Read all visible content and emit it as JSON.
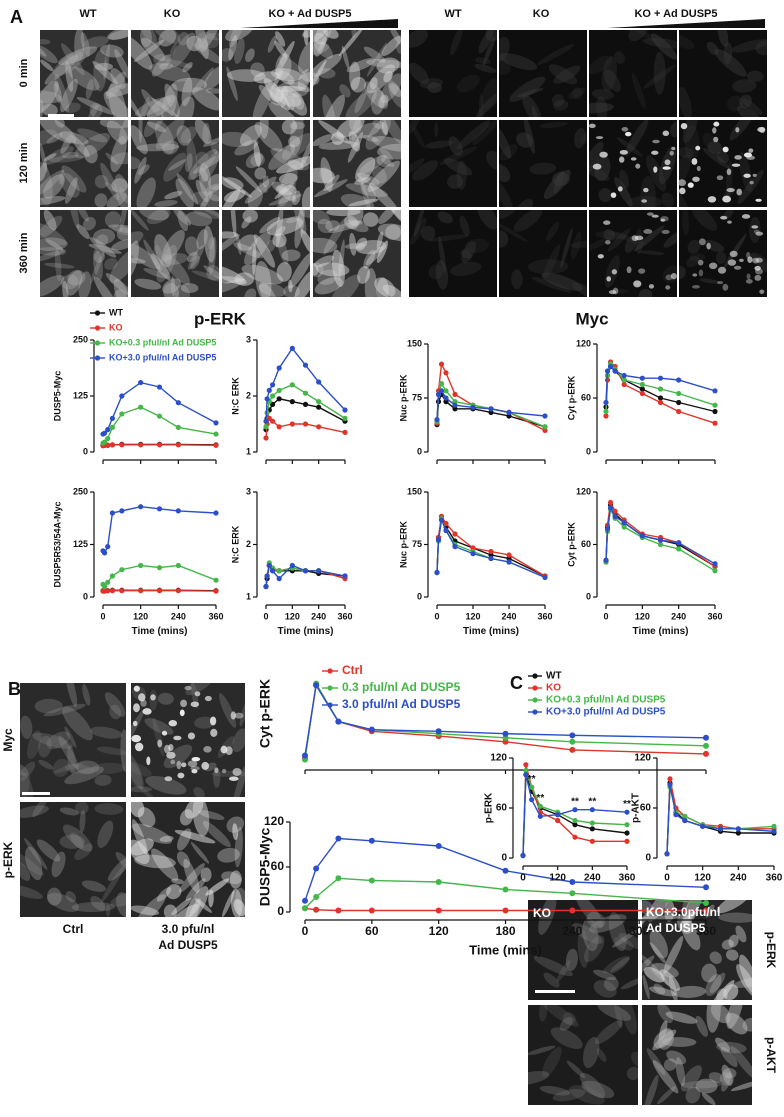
{
  "panel_labels": [
    "A",
    "B",
    "C"
  ],
  "panel_a": {
    "columns_left": [
      "WT",
      "KO",
      "KO + Ad DUSP5"
    ],
    "columns_right": [
      "WT",
      "KO",
      "KO + Ad DUSP5"
    ],
    "rows": [
      "0 min",
      "120 min",
      "360 min"
    ],
    "headings": [
      "p-ERK",
      "Myc"
    ]
  },
  "panel_b": {
    "rows": [
      "Myc",
      "p-ERK"
    ],
    "columns": [
      [
        "Ctrl"
      ],
      [
        "3.0 pfu/nl",
        "Ad DUSP5"
      ]
    ]
  },
  "panel_c": {
    "columns": [
      [
        "KO"
      ],
      [
        "KO+3.0pfu/nl",
        "Ad DUSP5"
      ]
    ],
    "rows": [
      "p-ERK",
      "p-AKT"
    ]
  },
  "chart_data": [
    {
      "type": "line",
      "ylabel": "DUSP5-Myc",
      "legend": "top-left",
      "x": [
        0,
        5,
        15,
        30,
        60,
        120,
        180,
        240,
        360
      ],
      "xlim": [
        0,
        360
      ],
      "xticks": [
        0,
        120,
        240,
        360
      ],
      "xtick_labels": false,
      "ylim": [
        0,
        250
      ],
      "yticks": [
        0,
        125,
        250
      ],
      "series": [
        {
          "name": "WT",
          "color": "#111111",
          "values": [
            15,
            15,
            15,
            16,
            17,
            17,
            17,
            17,
            16
          ]
        },
        {
          "name": "KO",
          "color": "#e0332a",
          "values": [
            14,
            15,
            15,
            16,
            16,
            16,
            16,
            16,
            15
          ]
        },
        {
          "name": "KO+0.3 pful/nl Ad DUSP5",
          "color": "#45b649",
          "values": [
            20,
            22,
            30,
            55,
            85,
            100,
            80,
            55,
            40
          ]
        },
        {
          "name": "KO+3.0 pful/nl Ad DUSP5",
          "color": "#2c4fc9",
          "values": [
            40,
            42,
            50,
            75,
            125,
            155,
            145,
            110,
            65
          ]
        }
      ]
    },
    {
      "type": "line",
      "ylabel": "N:C ERK",
      "x": [
        0,
        5,
        15,
        30,
        60,
        120,
        180,
        240,
        360
      ],
      "xlim": [
        0,
        360
      ],
      "xticks": [
        0,
        120,
        240,
        360
      ],
      "xtick_labels": false,
      "ylim": [
        1,
        3
      ],
      "yticks": [
        1,
        2,
        3
      ],
      "series": [
        {
          "color": "#111111",
          "values": [
            1.4,
            1.6,
            1.75,
            1.85,
            1.95,
            1.9,
            1.85,
            1.8,
            1.55
          ]
        },
        {
          "color": "#e0332a",
          "values": [
            1.25,
            1.5,
            1.6,
            1.55,
            1.45,
            1.5,
            1.5,
            1.45,
            1.35
          ]
        },
        {
          "color": "#45b649",
          "values": [
            1.45,
            1.7,
            1.9,
            2.0,
            2.1,
            2.2,
            2.05,
            1.9,
            1.6
          ]
        },
        {
          "color": "#2c4fc9",
          "values": [
            1.55,
            1.95,
            2.1,
            2.2,
            2.5,
            2.85,
            2.55,
            2.25,
            1.75
          ]
        }
      ]
    },
    {
      "type": "line",
      "ylabel": "Nuc p-ERK",
      "x": [
        0,
        5,
        15,
        30,
        60,
        120,
        180,
        240,
        360
      ],
      "xlim": [
        0,
        360
      ],
      "xticks": [
        0,
        120,
        240,
        360
      ],
      "xtick_labels": false,
      "ylim": [
        0,
        150
      ],
      "yticks": [
        0,
        75,
        150
      ],
      "series": [
        {
          "color": "#111111",
          "values": [
            38,
            70,
            80,
            70,
            60,
            60,
            55,
            50,
            35
          ]
        },
        {
          "color": "#e0332a",
          "values": [
            40,
            85,
            122,
            110,
            80,
            65,
            60,
            55,
            30
          ]
        },
        {
          "color": "#45b649",
          "values": [
            42,
            80,
            95,
            85,
            70,
            65,
            60,
            55,
            35
          ]
        },
        {
          "color": "#2c4fc9",
          "values": [
            45,
            80,
            85,
            75,
            65,
            62,
            60,
            55,
            50
          ]
        }
      ]
    },
    {
      "type": "line",
      "ylabel": "Cyt p-ERK",
      "x": [
        0,
        5,
        15,
        30,
        60,
        120,
        180,
        240,
        360
      ],
      "xlim": [
        0,
        360
      ],
      "xticks": [
        0,
        120,
        240,
        360
      ],
      "xtick_labels": false,
      "ylim": [
        0,
        120
      ],
      "yticks": [
        0,
        60,
        120
      ],
      "series": [
        {
          "color": "#111111",
          "values": [
            50,
            85,
            95,
            90,
            80,
            70,
            60,
            55,
            45
          ]
        },
        {
          "color": "#e0332a",
          "values": [
            40,
            80,
            100,
            95,
            75,
            65,
            55,
            45,
            32
          ]
        },
        {
          "color": "#45b649",
          "values": [
            45,
            85,
            98,
            92,
            80,
            75,
            70,
            65,
            52
          ]
        },
        {
          "color": "#2c4fc9",
          "values": [
            55,
            90,
            95,
            90,
            85,
            82,
            82,
            80,
            68
          ]
        }
      ]
    },
    {
      "type": "line",
      "ylabel": "DUSP5R53/54A-Myc",
      "xlabel": "Time (mins)",
      "x": [
        0,
        5,
        15,
        30,
        60,
        120,
        180,
        240,
        360
      ],
      "xlim": [
        0,
        360
      ],
      "xticks": [
        0,
        120,
        240,
        360
      ],
      "ylim": [
        0,
        250
      ],
      "yticks": [
        0,
        125,
        250
      ],
      "series": [
        {
          "color": "#111111",
          "values": [
            15,
            15,
            15,
            16,
            16,
            16,
            16,
            16,
            15
          ]
        },
        {
          "color": "#e0332a",
          "values": [
            14,
            14,
            15,
            15,
            15,
            15,
            15,
            15,
            14
          ]
        },
        {
          "color": "#45b649",
          "values": [
            30,
            25,
            35,
            50,
            65,
            75,
            70,
            75,
            40
          ]
        },
        {
          "color": "#2c4fc9",
          "values": [
            110,
            105,
            120,
            200,
            205,
            215,
            210,
            205,
            200
          ]
        }
      ]
    },
    {
      "type": "line",
      "ylabel": "N:C ERK",
      "xlabel": "Time (mins)",
      "x": [
        0,
        5,
        15,
        30,
        60,
        120,
        180,
        240,
        360
      ],
      "xlim": [
        0,
        360
      ],
      "xticks": [
        0,
        120,
        240,
        360
      ],
      "ylim": [
        1,
        3
      ],
      "yticks": [
        1,
        2,
        3
      ],
      "series": [
        {
          "color": "#111111",
          "values": [
            1.2,
            1.35,
            1.6,
            1.55,
            1.5,
            1.5,
            1.5,
            1.45,
            1.4
          ]
        },
        {
          "color": "#e0332a",
          "values": [
            1.2,
            1.4,
            1.6,
            1.5,
            1.5,
            1.55,
            1.5,
            1.5,
            1.35
          ]
        },
        {
          "color": "#45b649",
          "values": [
            1.2,
            1.4,
            1.65,
            1.55,
            1.5,
            1.55,
            1.5,
            1.5,
            1.4
          ]
        },
        {
          "color": "#2c4fc9",
          "values": [
            1.2,
            1.4,
            1.6,
            1.5,
            1.35,
            1.6,
            1.5,
            1.5,
            1.4
          ]
        }
      ]
    },
    {
      "type": "line",
      "ylabel": "Nuc p-ERK",
      "xlabel": "Time (mins)",
      "x": [
        0,
        5,
        15,
        30,
        60,
        120,
        180,
        240,
        360
      ],
      "xlim": [
        0,
        360
      ],
      "xticks": [
        0,
        120,
        240,
        360
      ],
      "ylim": [
        0,
        150
      ],
      "yticks": [
        0,
        75,
        150
      ],
      "series": [
        {
          "color": "#111111",
          "values": [
            35,
            85,
            115,
            100,
            80,
            70,
            60,
            55,
            30
          ]
        },
        {
          "color": "#e0332a",
          "values": [
            35,
            85,
            115,
            105,
            90,
            70,
            65,
            60,
            30
          ]
        },
        {
          "color": "#45b649",
          "values": [
            35,
            80,
            112,
            95,
            75,
            65,
            55,
            50,
            28
          ]
        },
        {
          "color": "#2c4fc9",
          "values": [
            35,
            82,
            110,
            95,
            72,
            62,
            55,
            50,
            28
          ]
        }
      ]
    },
    {
      "type": "line",
      "ylabel": "Cyt p-ERK",
      "xlabel": "Time (mins)",
      "x": [
        0,
        5,
        15,
        30,
        60,
        120,
        180,
        240,
        360
      ],
      "xlim": [
        0,
        360
      ],
      "xticks": [
        0,
        120,
        240,
        360
      ],
      "ylim": [
        0,
        120
      ],
      "yticks": [
        0,
        60,
        120
      ],
      "series": [
        {
          "color": "#111111",
          "values": [
            40,
            80,
            105,
            95,
            85,
            70,
            65,
            60,
            35
          ]
        },
        {
          "color": "#e0332a",
          "values": [
            42,
            82,
            108,
            98,
            88,
            72,
            68,
            62,
            35
          ]
        },
        {
          "color": "#45b649",
          "values": [
            40,
            75,
            100,
            90,
            80,
            68,
            60,
            55,
            30
          ]
        },
        {
          "color": "#2c4fc9",
          "values": [
            42,
            78,
            102,
            92,
            85,
            70,
            65,
            62,
            38
          ]
        }
      ]
    },
    {
      "type": "line",
      "ylabel": "Cyt p-ERK",
      "legend": "top-right",
      "x": [
        0,
        10,
        30,
        60,
        120,
        180,
        240,
        360
      ],
      "xlim": [
        0,
        360
      ],
      "xticks": [
        0,
        60,
        120,
        180,
        240,
        300,
        360
      ],
      "xtick_labels": false,
      "ylim": [
        0,
        120
      ],
      "series": [
        {
          "name": "Ctrl",
          "color": "#e0332a",
          "values": [
            5,
            95,
            50,
            38,
            32,
            25,
            15,
            10
          ]
        },
        {
          "name": "0.3 pful/nl Ad DUSP5",
          "color": "#45b649",
          "values": [
            3,
            97,
            50,
            40,
            35,
            30,
            25,
            20
          ]
        },
        {
          "name": "3.0 pful/nl Ad DUSP5",
          "color": "#2c4fc9",
          "values": [
            8,
            95,
            50,
            40,
            38,
            35,
            33,
            30
          ]
        }
      ]
    },
    {
      "type": "line",
      "ylabel": "DUSP5-Myc",
      "xlabel": "Time (mins)",
      "x": [
        0,
        10,
        30,
        60,
        120,
        180,
        240,
        360
      ],
      "xlim": [
        0,
        360
      ],
      "xticks": [
        0,
        60,
        120,
        180,
        240,
        300,
        360
      ],
      "ylim": [
        0,
        120
      ],
      "yticks": [
        0,
        60,
        120
      ],
      "series": [
        {
          "color": "#e0332a",
          "values": [
            5,
            3,
            2,
            2,
            2,
            2,
            2,
            2
          ]
        },
        {
          "color": "#45b649",
          "values": [
            5,
            20,
            45,
            42,
            40,
            30,
            25,
            12
          ]
        },
        {
          "color": "#2c4fc9",
          "values": [
            15,
            58,
            98,
            95,
            88,
            55,
            40,
            33
          ]
        }
      ]
    },
    {
      "type": "line",
      "ylabel": "p-ERK",
      "legend": "top-left",
      "x": [
        0,
        10,
        30,
        60,
        120,
        180,
        240,
        360
      ],
      "xlim": [
        0,
        360
      ],
      "xticks": [
        0,
        120,
        240,
        360
      ],
      "ylim": [
        0,
        120
      ],
      "yticks": [
        0,
        60,
        120
      ],
      "annotations": [
        {
          "text": "**",
          "x": 30
        },
        {
          "text": "**",
          "x": 60
        },
        {
          "text": "**",
          "x": 180
        },
        {
          "text": "**",
          "x": 240
        },
        {
          "text": "**",
          "x": 360
        }
      ],
      "series": [
        {
          "name": "WT",
          "color": "#111111",
          "values": [
            3,
            100,
            80,
            60,
            52,
            40,
            35,
            30
          ]
        },
        {
          "name": "KO",
          "color": "#e0332a",
          "values": [
            3,
            112,
            85,
            55,
            45,
            25,
            20,
            20
          ]
        },
        {
          "name": "KO+0.3 pful/nl Ad DUSP5",
          "color": "#45b649",
          "values": [
            3,
            105,
            85,
            62,
            55,
            45,
            42,
            40
          ]
        },
        {
          "name": "KO+3.0 pful/nl Ad DUSP5",
          "color": "#2c4fc9",
          "values": [
            3,
            100,
            70,
            50,
            52,
            58,
            58,
            55
          ]
        }
      ]
    },
    {
      "type": "line",
      "ylabel": "p-AKT",
      "x": [
        0,
        10,
        30,
        60,
        120,
        180,
        240,
        360
      ],
      "xlim": [
        0,
        360
      ],
      "xticks": [
        0,
        120,
        240,
        360
      ],
      "ylim": [
        0,
        120
      ],
      "yticks": [
        0,
        60,
        120
      ],
      "series": [
        {
          "color": "#111111",
          "values": [
            5,
            90,
            55,
            45,
            38,
            32,
            30,
            30
          ]
        },
        {
          "color": "#e0332a",
          "values": [
            5,
            95,
            60,
            50,
            40,
            38,
            35,
            35
          ]
        },
        {
          "color": "#45b649",
          "values": [
            5,
            85,
            55,
            50,
            40,
            35,
            35,
            38
          ]
        },
        {
          "color": "#2c4fc9",
          "values": [
            5,
            88,
            52,
            45,
            38,
            35,
            35,
            32
          ]
        }
      ]
    }
  ]
}
